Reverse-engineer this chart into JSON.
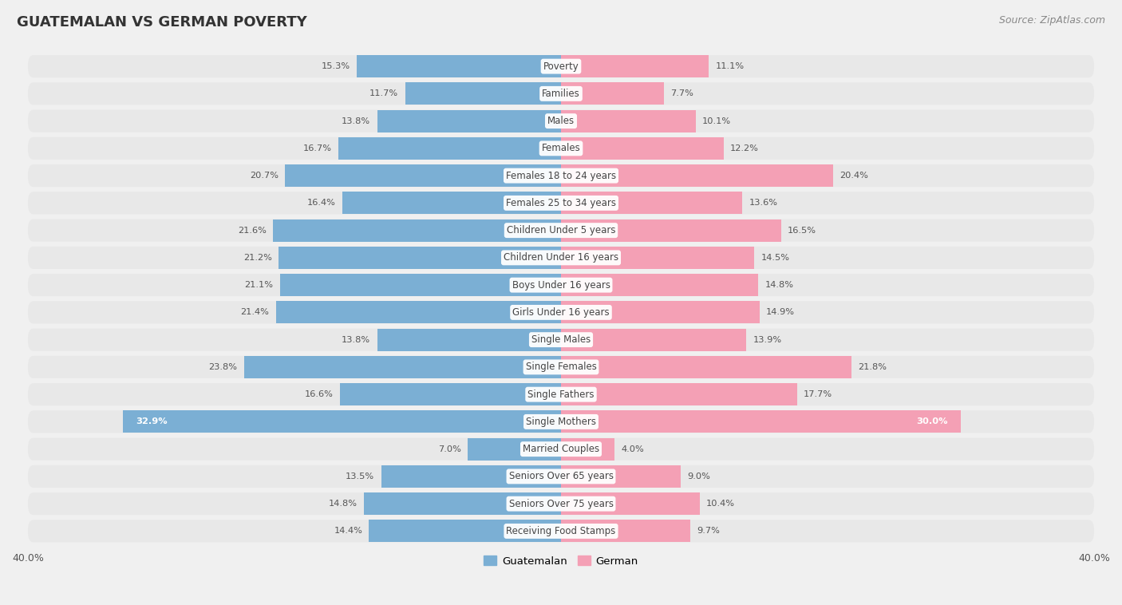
{
  "title": "GUATEMALAN VS GERMAN POVERTY",
  "source": "Source: ZipAtlas.com",
  "categories": [
    "Poverty",
    "Families",
    "Males",
    "Females",
    "Females 18 to 24 years",
    "Females 25 to 34 years",
    "Children Under 5 years",
    "Children Under 16 years",
    "Boys Under 16 years",
    "Girls Under 16 years",
    "Single Males",
    "Single Females",
    "Single Fathers",
    "Single Mothers",
    "Married Couples",
    "Seniors Over 65 years",
    "Seniors Over 75 years",
    "Receiving Food Stamps"
  ],
  "guatemalan": [
    15.3,
    11.7,
    13.8,
    16.7,
    20.7,
    16.4,
    21.6,
    21.2,
    21.1,
    21.4,
    13.8,
    23.8,
    16.6,
    32.9,
    7.0,
    13.5,
    14.8,
    14.4
  ],
  "german": [
    11.1,
    7.7,
    10.1,
    12.2,
    20.4,
    13.6,
    16.5,
    14.5,
    14.8,
    14.9,
    13.9,
    21.8,
    17.7,
    30.0,
    4.0,
    9.0,
    10.4,
    9.7
  ],
  "guatemalan_color": "#7bafd4",
  "german_color": "#f4a0b5",
  "background_color": "#f0f0f0",
  "row_bg_color": "#e8e8e8",
  "axis_max": 40.0,
  "legend_guatemalan": "Guatemalan",
  "legend_german": "German",
  "value_label_color": "#555555",
  "value_label_color_inside": "#ffffff",
  "label_bg_color": "#ffffff",
  "label_text_color": "#444444"
}
